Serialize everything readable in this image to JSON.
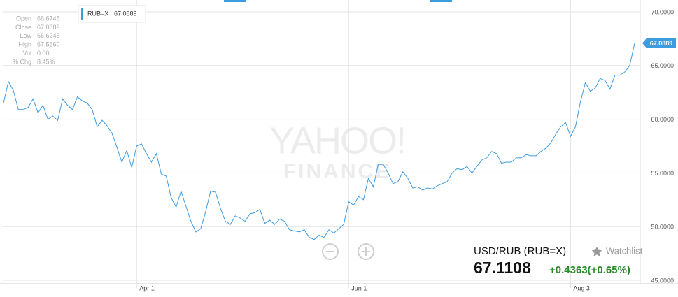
{
  "chart_data": {
    "type": "line",
    "watermark": [
      "YAHOO!",
      "FINANCE"
    ],
    "categories": [
      null,
      null,
      null,
      null,
      null,
      null,
      null,
      null,
      null,
      null,
      null,
      null,
      null,
      null,
      null,
      null,
      null,
      null,
      null,
      null,
      null,
      null,
      null,
      null,
      null,
      null,
      null,
      "Apr 1",
      null,
      null,
      null,
      null,
      null,
      null,
      null,
      null,
      null,
      null,
      null,
      null,
      null,
      null,
      null,
      null,
      null,
      null,
      null,
      null,
      null,
      null,
      null,
      null,
      null,
      null,
      null,
      null,
      null,
      null,
      null,
      null,
      null,
      null,
      null,
      null,
      null,
      null,
      null,
      null,
      null,
      null,
      "Jun 1",
      null,
      null,
      null,
      null,
      null,
      null,
      null,
      null,
      null,
      null,
      null,
      null,
      null,
      null,
      null,
      null,
      null,
      null,
      null,
      null,
      null,
      null,
      null,
      null,
      null,
      null,
      null,
      null,
      null,
      null,
      null,
      null,
      null,
      null,
      null,
      null,
      null,
      null,
      null,
      null,
      null,
      null,
      null,
      null,
      "Aug 3",
      null,
      null,
      null,
      null,
      null,
      null,
      null,
      null,
      null,
      null,
      null,
      null,
      null
    ],
    "series": [
      {
        "name": "RUB=X",
        "color": "#3d9be0",
        "values": [
          61.5,
          63.5,
          62.7,
          60.9,
          60.9,
          61.1,
          61.9,
          60.6,
          61.3,
          60.0,
          60.3,
          59.9,
          61.9,
          61.3,
          60.9,
          62.1,
          61.7,
          61.5,
          60.9,
          59.3,
          59.9,
          59.4,
          58.7,
          57.4,
          56.0,
          57.1,
          55.5,
          57.5,
          57.7,
          56.8,
          56.0,
          56.8,
          54.9,
          54.7,
          52.7,
          51.8,
          53.3,
          51.9,
          50.5,
          49.5,
          49.8,
          51.4,
          53.3,
          53.2,
          51.7,
          50.5,
          50.2,
          51.0,
          50.8,
          50.5,
          51.2,
          51.3,
          51.6,
          50.3,
          50.6,
          50.2,
          50.7,
          50.5,
          49.7,
          49.6,
          49.5,
          49.7,
          49.0,
          48.8,
          49.2,
          49.0,
          49.7,
          49.4,
          49.8,
          50.2,
          52.3,
          52.0,
          52.8,
          52.5,
          54.5,
          53.7,
          55.8,
          55.8,
          55.0,
          54.0,
          54.2,
          55.1,
          54.5,
          53.6,
          53.7,
          53.4,
          53.6,
          53.5,
          53.8,
          54.0,
          54.2,
          55.0,
          55.4,
          55.3,
          55.6,
          55.0,
          55.6,
          56.2,
          56.4,
          57.0,
          56.8,
          55.9,
          56.0,
          56.0,
          56.4,
          56.4,
          56.7,
          56.6,
          56.6,
          57.0,
          57.3,
          57.8,
          58.6,
          59.3,
          59.7,
          58.4,
          59.3,
          61.6,
          63.4,
          62.6,
          62.9,
          63.8,
          63.6,
          62.8,
          64.1,
          64.1,
          64.4,
          65.0,
          67.0889
        ]
      }
    ],
    "ylim": [
      45,
      70
    ],
    "yticks": [
      {
        "value": 45,
        "label": "45.0000"
      },
      {
        "value": 50,
        "label": "50.0000"
      },
      {
        "value": 55,
        "label": "55.0000"
      },
      {
        "value": 60,
        "label": "60.0000"
      },
      {
        "value": 65,
        "label": "65.0000"
      },
      {
        "value": 70,
        "label": "70.0000"
      }
    ],
    "grid": true,
    "ohlc": {
      "labels": [
        "Open",
        "Close",
        "Low",
        "High",
        "Vol",
        "% Chg"
      ],
      "values": [
        "66.6745",
        "67.0889",
        "66.6245",
        "67.5660",
        "0.00",
        "8.45%"
      ]
    },
    "quote": {
      "symbol": "USD/RUB (RUB=X)",
      "watchlist": "Watchlist",
      "price": "67.1108",
      "change": "+0.4363(+0.65%)"
    }
  }
}
